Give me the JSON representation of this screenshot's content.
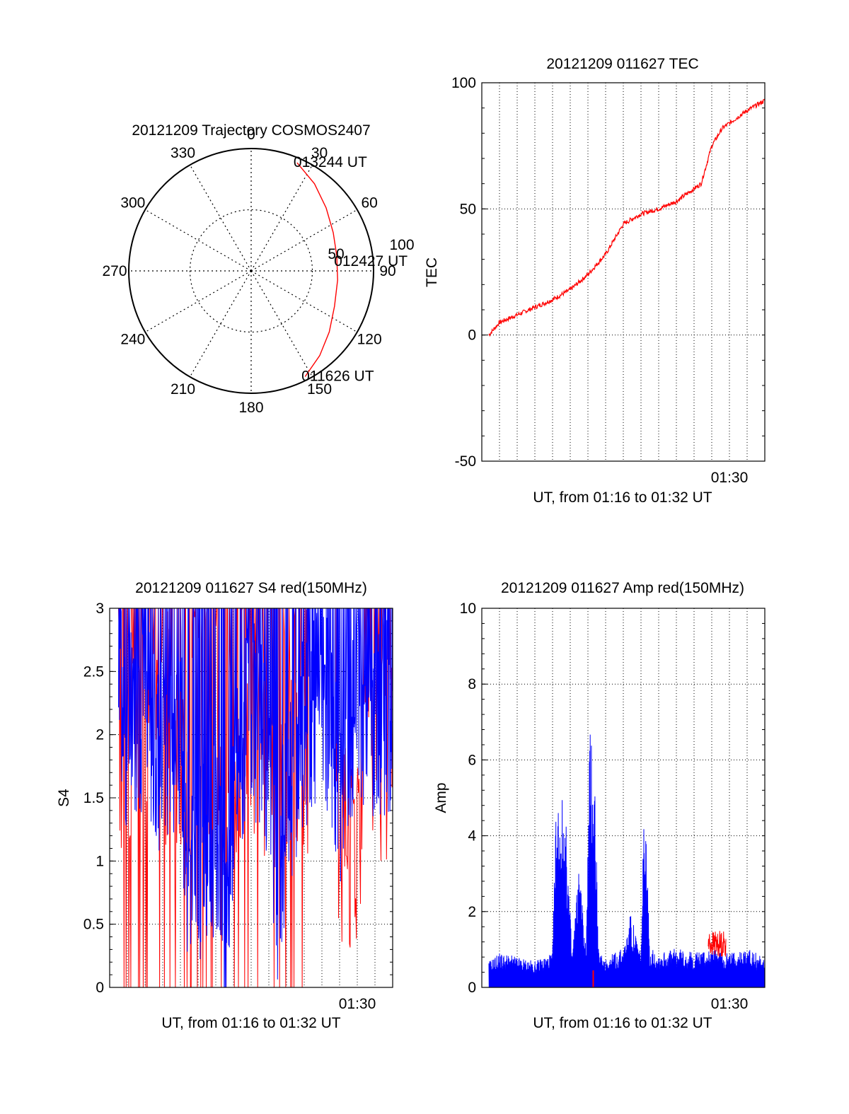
{
  "chart_data": [
    {
      "type": "polar",
      "title": "20121209 Trajectory COSMOS2407",
      "angle_labels": [
        "0",
        "30",
        "60",
        "90",
        "120",
        "150",
        "180",
        "210",
        "240",
        "270",
        "300",
        "330"
      ],
      "radial_labels": [
        "50",
        "100"
      ],
      "series": [
        {
          "name": "trajectory",
          "color": "#ff0000",
          "points": [
            {
              "az": 23,
              "zen": 96
            },
            {
              "az": 36,
              "zen": 88
            },
            {
              "az": 50,
              "zen": 80
            },
            {
              "az": 65,
              "zen": 74
            },
            {
              "az": 80,
              "zen": 71
            },
            {
              "az": 96,
              "zen": 71
            },
            {
              "az": 113,
              "zen": 74
            },
            {
              "az": 128,
              "zen": 81
            },
            {
              "az": 141,
              "zen": 89
            },
            {
              "az": 153,
              "zen": 97
            }
          ]
        }
      ],
      "annotations": [
        {
          "text": "013244 UT",
          "az": 23,
          "zen": 96
        },
        {
          "text": "012427 UT",
          "az": 84,
          "zen": 71
        },
        {
          "text": "011626 UT",
          "az": 153,
          "zen": 97
        }
      ]
    },
    {
      "type": "line",
      "title": "20121209 011627 TEC",
      "xlabel": "UT, from 01:16 to 01:32 UT",
      "ylabel": "TEC",
      "xlim": [
        0,
        16
      ],
      "ylim": [
        -50,
        100
      ],
      "yticks": [
        -50,
        0,
        50,
        100
      ],
      "xtick_labels": [
        {
          "x": 14,
          "label": "01:30"
        }
      ],
      "series": [
        {
          "name": "TEC",
          "color": "#ff0000",
          "x": [
            0.4,
            1.0,
            2.0,
            3.0,
            4.0,
            5.0,
            6.0,
            7.0,
            8.0,
            9.0,
            10.0,
            11.0,
            12.0,
            12.4,
            13.0,
            13.6,
            14.0,
            15.0,
            16.0
          ],
          "y": [
            0,
            5,
            8,
            11,
            14,
            18,
            24,
            32,
            44,
            48,
            50,
            53,
            58,
            60,
            75,
            82,
            84,
            89,
            93
          ]
        }
      ]
    },
    {
      "type": "line",
      "title": "20121209 011627 S4 red(150MHz)",
      "xlabel": "UT, from 01:16 to 01:32 UT",
      "ylabel": "S4",
      "xlim": [
        0,
        16
      ],
      "ylim": [
        0,
        3
      ],
      "yticks": [
        0,
        0.5,
        1,
        1.5,
        2,
        2.5,
        3
      ],
      "xtick_labels": [
        {
          "x": 14,
          "label": "01:30"
        }
      ],
      "series": [
        {
          "name": "red",
          "color": "#ff0000",
          "x": [
            0.5,
            1.2,
            2.2,
            3.5,
            4.8,
            6.0,
            7.2,
            8.5,
            9.5,
            10.5,
            11.0,
            13.2,
            13.6,
            13.9,
            14.2,
            15.0
          ],
          "y": [
            2.2,
            0.9,
            2.0,
            1.2,
            2.4,
            1.5,
            2.6,
            2.0,
            1.4,
            0.8,
            2.0,
            0.8,
            0.4,
            0.5,
            1.0,
            2.3
          ]
        },
        {
          "name": "blue",
          "color": "#0000ff",
          "x": [
            0.5,
            1.0,
            2.0,
            3.0,
            4.0,
            4.5,
            5.0,
            6.0,
            6.5,
            7.0,
            8.0,
            9.0,
            9.5,
            10.0,
            11.0,
            12.0,
            13.0,
            14.0,
            15.0,
            16.0
          ],
          "y": [
            2.3,
            2.0,
            2.2,
            1.8,
            2.1,
            0.65,
            1.0,
            1.2,
            0.5,
            1.6,
            2.2,
            1.8,
            0.7,
            1.5,
            2.0,
            2.4,
            1.6,
            2.3,
            2.1,
            2.2
          ]
        }
      ]
    },
    {
      "type": "line",
      "title": "20121209 011627 Amp red(150MHz)",
      "xlabel": "UT, from 01:16 to 01:32 UT",
      "ylabel": "Amp",
      "xlim": [
        0,
        16
      ],
      "ylim": [
        0,
        10
      ],
      "yticks": [
        0,
        2,
        4,
        6,
        8,
        10
      ],
      "xtick_labels": [
        {
          "x": 14,
          "label": "01:30"
        }
      ],
      "series": [
        {
          "name": "blue",
          "color": "#0000ff",
          "x": [
            0.4,
            1.0,
            2.0,
            3.0,
            4.0,
            4.2,
            4.5,
            4.8,
            5.1,
            5.5,
            5.9,
            6.1,
            6.2,
            6.4,
            6.6,
            7.0,
            8.0,
            8.4,
            9.0,
            9.2,
            9.5,
            10.0,
            11.0,
            12.0,
            13.0,
            14.0,
            15.0,
            16.0
          ],
          "y": [
            0.6,
            0.8,
            0.7,
            0.6,
            0.8,
            4.3,
            4.5,
            3.6,
            0.8,
            2.9,
            0.9,
            5.9,
            6.1,
            4.9,
            0.8,
            0.7,
            0.9,
            1.7,
            0.8,
            4.6,
            0.9,
            0.8,
            0.9,
            0.8,
            0.9,
            0.8,
            0.9,
            0.7
          ]
        },
        {
          "name": "red",
          "color": "#ff0000",
          "x": [
            12.8,
            13.3,
            13.8
          ],
          "y": [
            1.0,
            1.4,
            1.1
          ]
        }
      ]
    }
  ]
}
